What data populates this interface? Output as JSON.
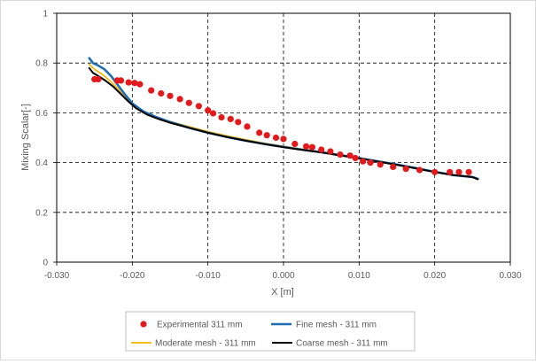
{
  "chart_data": {
    "type": "scatter",
    "title": "",
    "xlabel": "X [m]",
    "ylabel": "Mixing Scalar[-]",
    "xlim": [
      -0.03,
      0.03
    ],
    "ylim": [
      0,
      1
    ],
    "x_ticks": [
      "-0.030",
      "-0.020",
      "-0.010",
      "0.000",
      "0.010",
      "0.020",
      "0.030"
    ],
    "y_ticks": [
      "0",
      "0.2",
      "0.4",
      "0.6",
      "0.8",
      "1"
    ],
    "grid": "dashed",
    "legend_position": "bottom",
    "series": [
      {
        "name": "Experimental 311 mm",
        "style": "markers",
        "color": "#e31a1c",
        "x": [
          -0.025,
          -0.0245,
          -0.022,
          -0.0215,
          -0.0205,
          -0.0197,
          -0.019,
          -0.0175,
          -0.0162,
          -0.015,
          -0.0137,
          -0.0125,
          -0.0112,
          -0.01,
          -0.0093,
          -0.0082,
          -0.007,
          -0.006,
          -0.0048,
          -0.0032,
          -0.0022,
          -0.001,
          0.0,
          0.0015,
          0.003,
          0.0038,
          0.005,
          0.0062,
          0.0075,
          0.0088,
          0.0095,
          0.0105,
          0.0115,
          0.0128,
          0.0145,
          0.0162,
          0.018,
          0.02,
          0.022,
          0.0232,
          0.0245
        ],
        "y": [
          0.735,
          0.735,
          0.73,
          0.73,
          0.722,
          0.72,
          0.715,
          0.69,
          0.678,
          0.668,
          0.655,
          0.64,
          0.627,
          0.61,
          0.598,
          0.582,
          0.575,
          0.563,
          0.545,
          0.52,
          0.51,
          0.5,
          0.495,
          0.475,
          0.465,
          0.462,
          0.452,
          0.445,
          0.432,
          0.428,
          0.418,
          0.405,
          0.4,
          0.392,
          0.383,
          0.375,
          0.37,
          0.362,
          0.362,
          0.362,
          0.362
        ]
      },
      {
        "name": "Fine mesh - 311 mm",
        "style": "line",
        "color": "#1f6fb2",
        "x": [
          -0.0257,
          -0.0252,
          -0.0245,
          -0.0237,
          -0.0228,
          -0.022,
          -0.021,
          -0.02,
          -0.0185,
          -0.017,
          -0.015,
          -0.0125,
          -0.01,
          -0.0075,
          -0.005,
          -0.0025,
          0.0,
          0.0025,
          0.005,
          0.0075,
          0.01,
          0.0125,
          0.015,
          0.0175,
          0.02,
          0.0225,
          0.025,
          0.0257
        ],
        "y": [
          0.82,
          0.8,
          0.79,
          0.775,
          0.748,
          0.715,
          0.675,
          0.638,
          0.605,
          0.585,
          0.563,
          0.54,
          0.52,
          0.503,
          0.488,
          0.475,
          0.463,
          0.452,
          0.442,
          0.43,
          0.418,
          0.405,
          0.392,
          0.378,
          0.363,
          0.35,
          0.342,
          0.335
        ]
      },
      {
        "name": "Moderate mesh - 311 mm",
        "style": "line",
        "color": "#f5b400",
        "x": [
          -0.0257,
          -0.025,
          -0.024,
          -0.023,
          -0.022,
          -0.021,
          -0.02,
          -0.0185,
          -0.017,
          -0.015,
          -0.0125,
          -0.01,
          -0.0075,
          -0.005,
          -0.0025,
          0.0,
          0.0025,
          0.005,
          0.0075,
          0.01,
          0.0125,
          0.015,
          0.0175,
          0.02,
          0.0225,
          0.025,
          0.0257
        ],
        "y": [
          0.795,
          0.775,
          0.755,
          0.73,
          0.7,
          0.665,
          0.632,
          0.605,
          0.585,
          0.565,
          0.545,
          0.525,
          0.508,
          0.492,
          0.478,
          0.466,
          0.454,
          0.443,
          0.431,
          0.419,
          0.406,
          0.393,
          0.379,
          0.364,
          0.351,
          0.343,
          0.336
        ]
      },
      {
        "name": "Coarse mesh - 311 mm",
        "style": "line",
        "color": "#000000",
        "x": [
          -0.0257,
          -0.0252,
          -0.0245,
          -0.0235,
          -0.0225,
          -0.0215,
          -0.0205,
          -0.0195,
          -0.018,
          -0.0165,
          -0.015,
          -0.0125,
          -0.01,
          -0.0075,
          -0.005,
          -0.0025,
          0.0,
          0.0025,
          0.005,
          0.0075,
          0.01,
          0.0125,
          0.015,
          0.0175,
          0.02,
          0.0225,
          0.025,
          0.0257
        ],
        "y": [
          0.78,
          0.76,
          0.748,
          0.728,
          0.705,
          0.675,
          0.645,
          0.618,
          0.592,
          0.575,
          0.56,
          0.54,
          0.52,
          0.503,
          0.488,
          0.474,
          0.462,
          0.451,
          0.441,
          0.429,
          0.417,
          0.404,
          0.391,
          0.377,
          0.362,
          0.35,
          0.342,
          0.333
        ]
      }
    ]
  }
}
